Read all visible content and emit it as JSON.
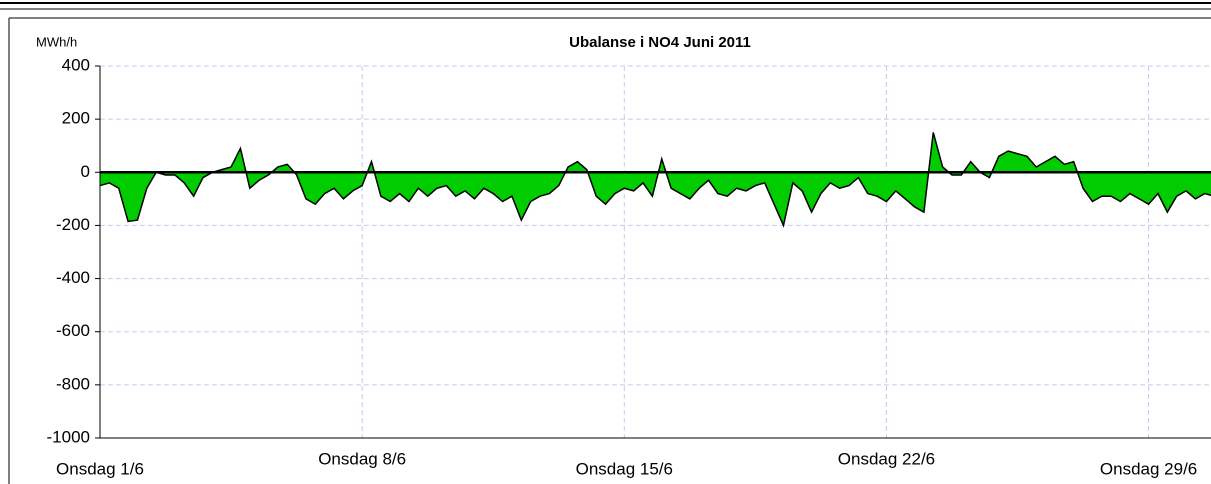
{
  "chart_data": {
    "type": "area",
    "title": "Ubalanse i NO4 Juni 2011",
    "y_label": "MWh/h",
    "categories": [
      "Onsdag 1/6",
      null,
      null,
      null,
      null,
      null,
      null,
      null,
      null,
      null,
      null,
      null,
      null,
      null,
      null,
      null,
      null,
      null,
      null,
      null,
      null,
      null,
      null,
      null,
      null,
      null,
      null,
      null,
      "Onsdag 8/6",
      null,
      null,
      null,
      null,
      null,
      null,
      null,
      null,
      null,
      null,
      null,
      null,
      null,
      null,
      null,
      null,
      null,
      null,
      null,
      null,
      null,
      null,
      null,
      null,
      null,
      null,
      null,
      "Onsdag 15/6",
      null,
      null,
      null,
      null,
      null,
      null,
      null,
      null,
      null,
      null,
      null,
      null,
      null,
      null,
      null,
      null,
      null,
      null,
      null,
      null,
      null,
      null,
      null,
      null,
      null,
      null,
      null,
      "Onsdag 22/6",
      null,
      null,
      null,
      null,
      null,
      null,
      null,
      null,
      null,
      null,
      null,
      null,
      null,
      null,
      null,
      null,
      null,
      null,
      null,
      null,
      null,
      null,
      null,
      null,
      null,
      null,
      null,
      "Onsdag 29/6",
      null,
      null,
      null,
      null,
      null,
      null,
      null
    ],
    "values": [
      -50,
      -40,
      -60,
      -185,
      -180,
      -60,
      0,
      -10,
      -10,
      -40,
      -90,
      -20,
      0,
      10,
      20,
      90,
      -60,
      -30,
      -10,
      20,
      30,
      -10,
      -100,
      -120,
      -80,
      -60,
      -100,
      -70,
      -50,
      40,
      -90,
      -110,
      -80,
      -110,
      -60,
      -90,
      -60,
      -50,
      -90,
      -70,
      -100,
      -60,
      -80,
      -110,
      -90,
      -180,
      -110,
      -90,
      -80,
      -50,
      20,
      40,
      10,
      -90,
      -120,
      -80,
      -60,
      -70,
      -40,
      -90,
      50,
      -60,
      -80,
      -100,
      -60,
      -30,
      -80,
      -90,
      -60,
      -70,
      -50,
      -40,
      -120,
      -200,
      -40,
      -70,
      -150,
      -80,
      -40,
      -60,
      -50,
      -20,
      -80,
      -90,
      -110,
      -70,
      -100,
      -130,
      -150,
      150,
      20,
      -10,
      -10,
      40,
      0,
      -20,
      60,
      80,
      70,
      60,
      20,
      40,
      60,
      30,
      40,
      -60,
      -110,
      -90,
      -90,
      -110,
      -80,
      -100,
      -120,
      -80,
      -150,
      -90,
      -70,
      -100,
      -80,
      -90
    ],
    "color": "#00cc00",
    "ylim": [
      -1000,
      400
    ],
    "yticks": [
      -1000,
      -800,
      -600,
      -400,
      -200,
      0,
      200,
      400
    ],
    "grid": true
  }
}
